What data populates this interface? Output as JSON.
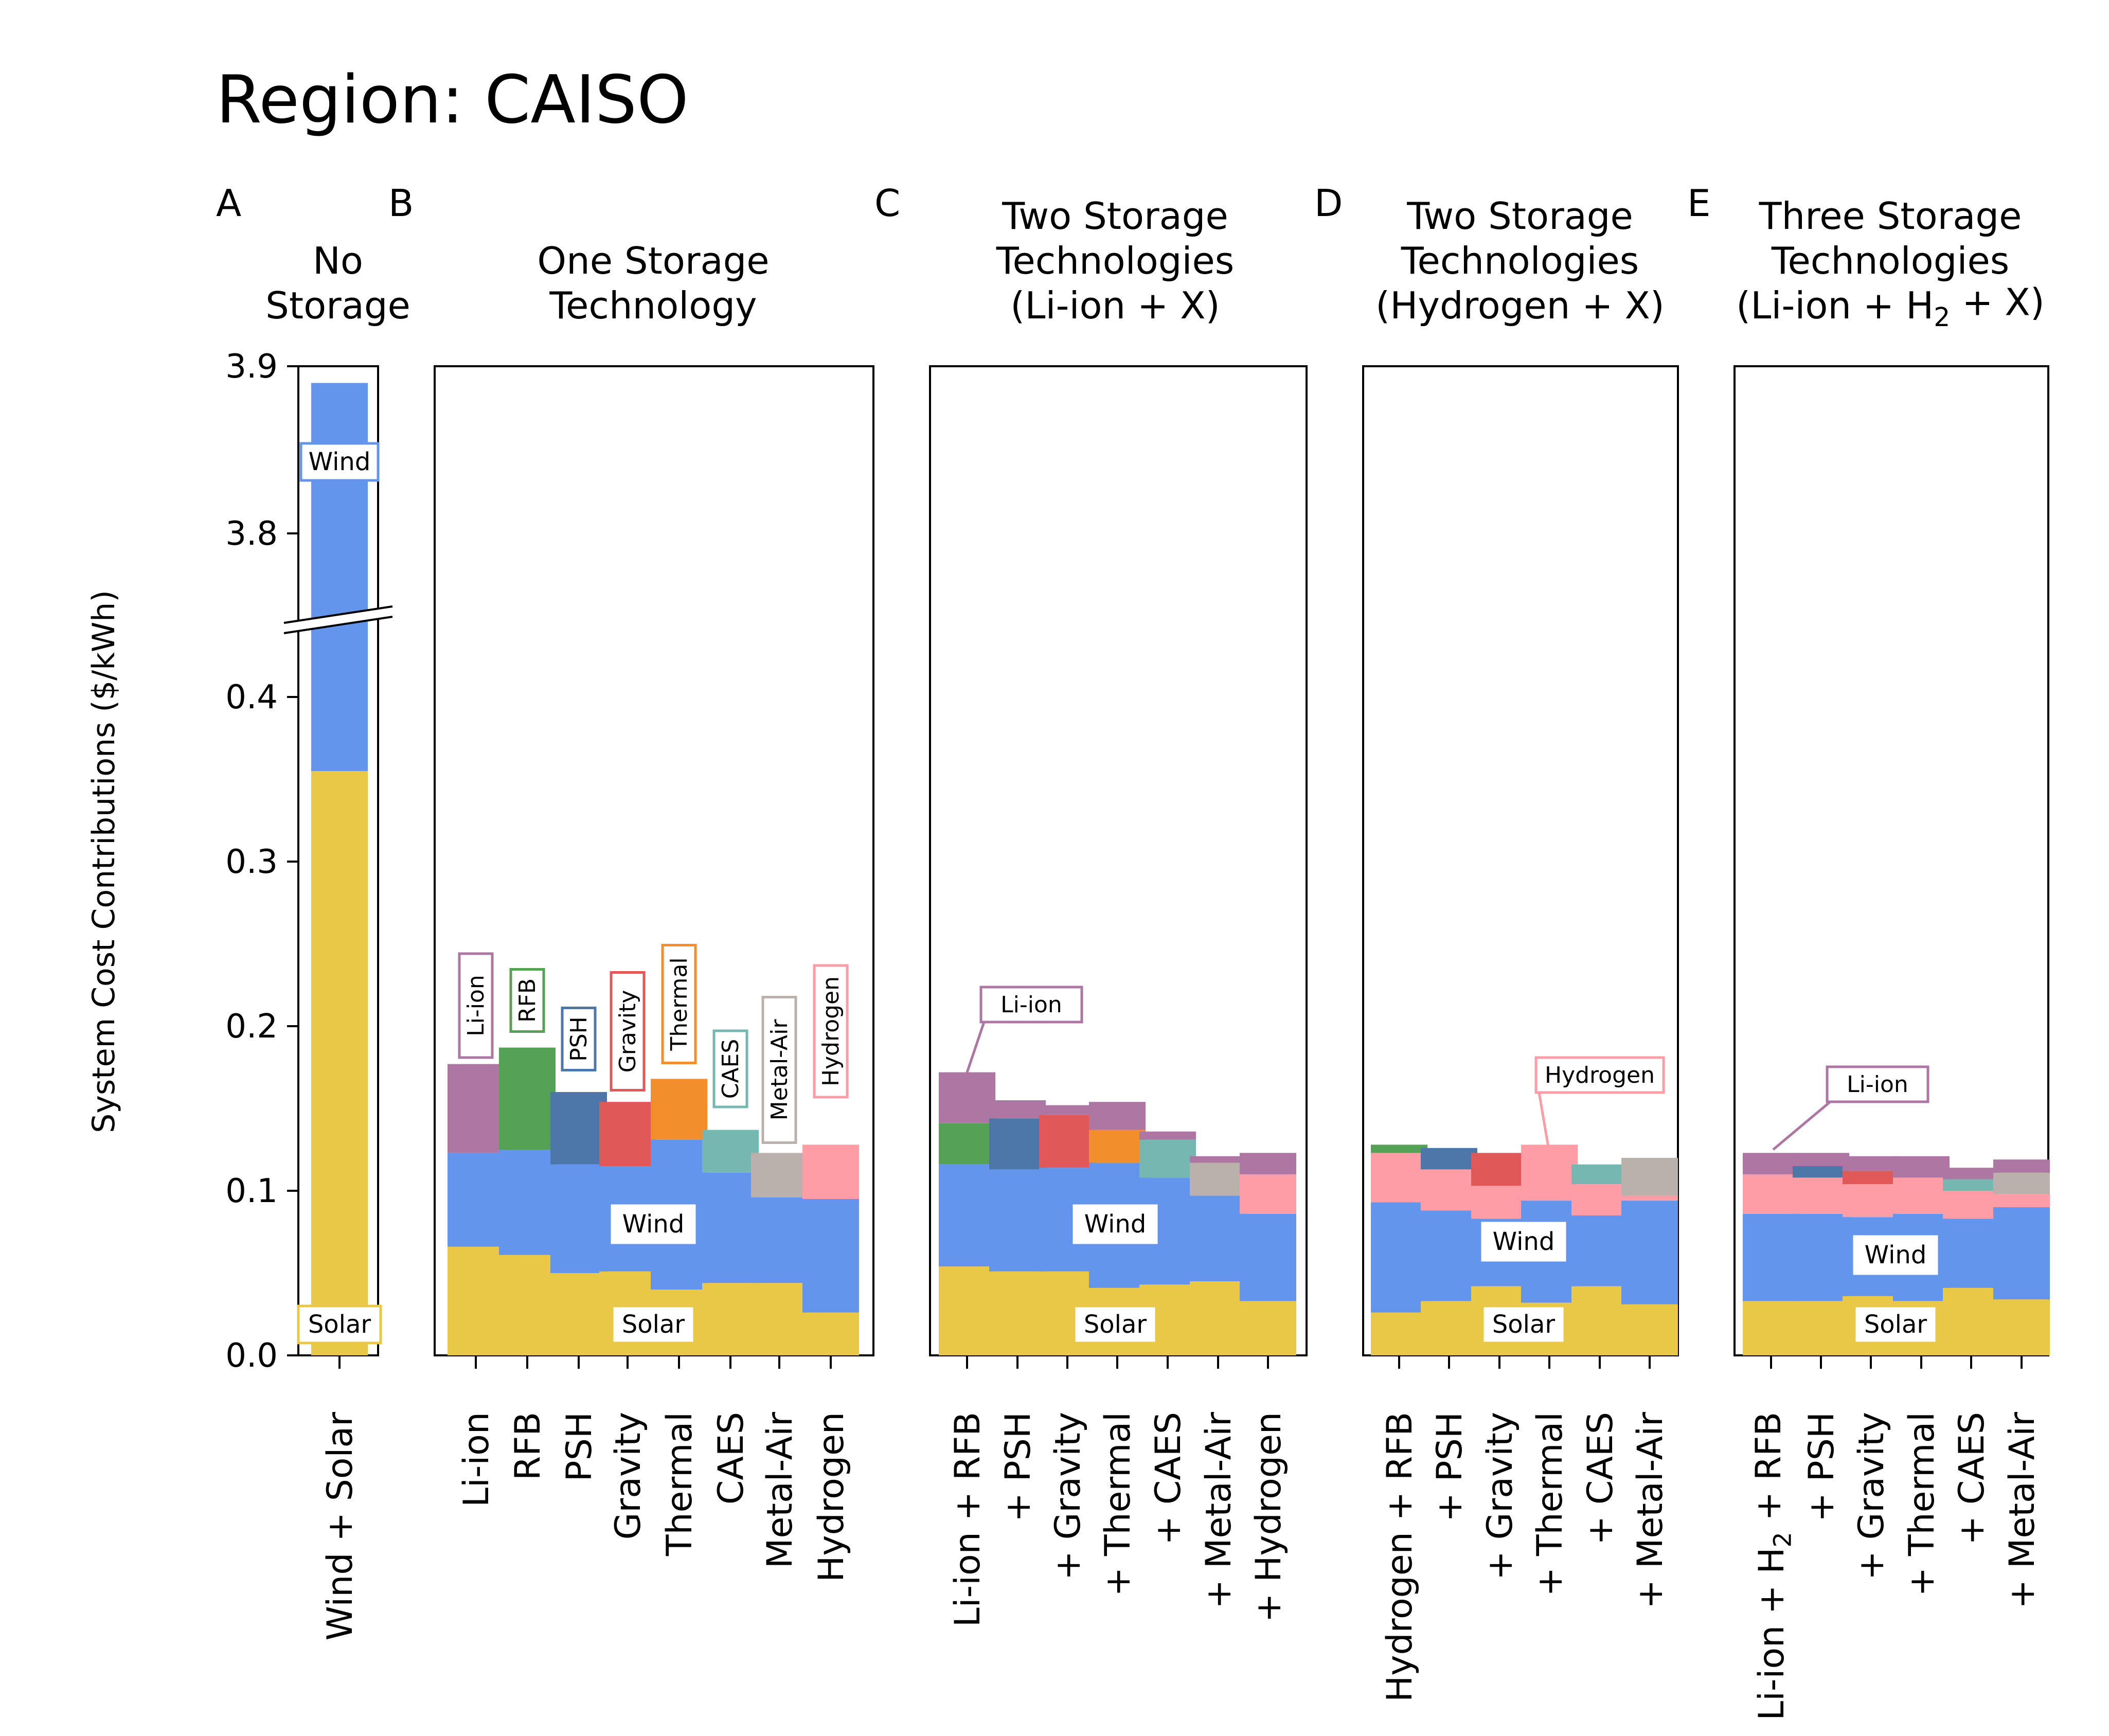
{
  "title": "Region: CAISO",
  "y_axis_label": "System Cost Contributions ($/kWh)",
  "y_ticks_lower": [
    "0.0",
    "0.1",
    "0.2",
    "0.3",
    "0.4"
  ],
  "y_ticks_upper": [
    "3.8",
    "3.9"
  ],
  "colors": {
    "Solar": "#EAC847",
    "Wind": "#6495ED",
    "Li-ion": "#AE76A3",
    "RFB": "#55A155",
    "PSH": "#4D77A8",
    "Gravity": "#E05858",
    "Thermal": "#F28E2B",
    "CAES": "#76B7B2",
    "Metal-Air": "#BAB0AC",
    "Hydrogen": "#FF9DA7"
  },
  "chart_data": [
    {
      "panel": "A",
      "title": "No Storage",
      "type": "bar",
      "stacked": true,
      "broken_y_axis": true,
      "categories": [
        "Wind + Solar"
      ],
      "series": [
        {
          "name": "Solar",
          "values": [
            0.355
          ]
        },
        {
          "name": "Wind",
          "values": [
            3.535
          ]
        }
      ],
      "annotations": [
        "Wind",
        "Solar"
      ]
    },
    {
      "panel": "B",
      "title": "One Storage Technology",
      "type": "bar",
      "stacked": true,
      "ylim": [
        0,
        0.6
      ],
      "categories": [
        "Li-ion",
        "RFB",
        "PSH",
        "Gravity",
        "Thermal",
        "CAES",
        "Metal-Air",
        "Hydrogen"
      ],
      "series": [
        {
          "name": "Solar",
          "values": [
            0.066,
            0.061,
            0.05,
            0.051,
            0.04,
            0.044,
            0.044,
            0.026
          ]
        },
        {
          "name": "Wind",
          "values": [
            0.057,
            0.064,
            0.066,
            0.064,
            0.091,
            0.067,
            0.052,
            0.069
          ]
        },
        {
          "name": "Li-ion",
          "values": [
            0.054,
            0,
            0,
            0,
            0,
            0,
            0,
            0
          ]
        },
        {
          "name": "RFB",
          "values": [
            0,
            0.062,
            0,
            0,
            0,
            0,
            0,
            0
          ]
        },
        {
          "name": "PSH",
          "values": [
            0,
            0,
            0.044,
            0,
            0,
            0,
            0,
            0
          ]
        },
        {
          "name": "Gravity",
          "values": [
            0,
            0,
            0,
            0.039,
            0,
            0,
            0,
            0
          ]
        },
        {
          "name": "Thermal",
          "values": [
            0,
            0,
            0,
            0,
            0.037,
            0,
            0,
            0
          ]
        },
        {
          "name": "CAES",
          "values": [
            0,
            0,
            0,
            0,
            0,
            0.026,
            0,
            0
          ]
        },
        {
          "name": "Metal-Air",
          "values": [
            0,
            0,
            0,
            0,
            0,
            0,
            0.027,
            0
          ]
        },
        {
          "name": "Hydrogen",
          "values": [
            0,
            0,
            0,
            0,
            0,
            0,
            0,
            0.033
          ]
        }
      ],
      "annotations": [
        "Li-ion",
        "RFB",
        "PSH",
        "Gravity",
        "Thermal",
        "CAES",
        "Metal-Air",
        "Hydrogen",
        "Wind",
        "Solar"
      ]
    },
    {
      "panel": "C",
      "title": "Two Storage Technologies (Li-ion + X)",
      "type": "bar",
      "stacked": true,
      "ylim": [
        0,
        0.6
      ],
      "categories": [
        "Li-ion + RFB",
        "+ PSH",
        "+ Gravity",
        "+ Thermal",
        "+ CAES",
        "+ Metal-Air",
        "+ Hydrogen"
      ],
      "series": [
        {
          "name": "Solar",
          "values": [
            0.054,
            0.051,
            0.051,
            0.041,
            0.043,
            0.045,
            0.033
          ]
        },
        {
          "name": "Wind",
          "values": [
            0.062,
            0.062,
            0.063,
            0.076,
            0.065,
            0.052,
            0.053
          ]
        },
        {
          "name": "RFB",
          "values": [
            0.025,
            0,
            0,
            0,
            0,
            0,
            0
          ]
        },
        {
          "name": "PSH",
          "values": [
            0,
            0.031,
            0,
            0,
            0,
            0,
            0
          ]
        },
        {
          "name": "Gravity",
          "values": [
            0,
            0,
            0.032,
            0,
            0,
            0,
            0
          ]
        },
        {
          "name": "Thermal",
          "values": [
            0,
            0,
            0,
            0.02,
            0,
            0,
            0
          ]
        },
        {
          "name": "CAES",
          "values": [
            0,
            0,
            0,
            0,
            0.023,
            0,
            0
          ]
        },
        {
          "name": "Metal-Air",
          "values": [
            0,
            0,
            0,
            0,
            0,
            0.02,
            0
          ]
        },
        {
          "name": "Hydrogen",
          "values": [
            0,
            0,
            0,
            0,
            0,
            0,
            0.024
          ]
        },
        {
          "name": "Li-ion",
          "values": [
            0.031,
            0.011,
            0.006,
            0.017,
            0.005,
            0.004,
            0.013
          ]
        }
      ],
      "annotations": [
        "Li-ion",
        "Wind",
        "Solar"
      ]
    },
    {
      "panel": "D",
      "title": "Two Storage Technologies (Hydrogen + X)",
      "type": "bar",
      "stacked": true,
      "ylim": [
        0,
        0.6
      ],
      "categories": [
        "Hydrogen + RFB",
        "+ PSH",
        "+ Gravity",
        "+ Thermal",
        "+ CAES",
        "+ Metal-Air"
      ],
      "series": [
        {
          "name": "Solar",
          "values": [
            0.026,
            0.033,
            0.042,
            0.032,
            0.042,
            0.031
          ]
        },
        {
          "name": "Wind",
          "values": [
            0.067,
            0.055,
            0.041,
            0.062,
            0.043,
            0.063
          ]
        },
        {
          "name": "Hydrogen",
          "values": [
            0.03,
            0.025,
            0.02,
            0.034,
            0.019,
            0.003
          ]
        },
        {
          "name": "RFB",
          "values": [
            0.005,
            0,
            0,
            0,
            0,
            0
          ]
        },
        {
          "name": "PSH",
          "values": [
            0,
            0.013,
            0,
            0,
            0,
            0
          ]
        },
        {
          "name": "Gravity",
          "values": [
            0,
            0,
            0.02,
            0,
            0,
            0
          ]
        },
        {
          "name": "Thermal",
          "values": [
            0,
            0,
            0,
            0,
            0,
            0
          ]
        },
        {
          "name": "CAES",
          "values": [
            0,
            0,
            0,
            0,
            0.012,
            0
          ]
        },
        {
          "name": "Metal-Air",
          "values": [
            0,
            0,
            0,
            0,
            0,
            0.023
          ]
        }
      ],
      "annotations": [
        "Hydrogen",
        "Wind",
        "Solar"
      ]
    },
    {
      "panel": "E",
      "title": "Three Storage Technologies (Li-ion + H2 + X)",
      "type": "bar",
      "stacked": true,
      "ylim": [
        0,
        0.6
      ],
      "categories": [
        "Li-ion + H2 + RFB",
        "+ PSH",
        "+ Gravity",
        "+ Thermal",
        "+ CAES",
        "+ Metal-Air"
      ],
      "series": [
        {
          "name": "Solar",
          "values": [
            0.033,
            0.033,
            0.036,
            0.033,
            0.041,
            0.034
          ]
        },
        {
          "name": "Wind",
          "values": [
            0.053,
            0.053,
            0.048,
            0.053,
            0.042,
            0.056
          ]
        },
        {
          "name": "Hydrogen",
          "values": [
            0.024,
            0.022,
            0.02,
            0.022,
            0.017,
            0.008
          ]
        },
        {
          "name": "RFB",
          "values": [
            0,
            0,
            0,
            0,
            0,
            0
          ]
        },
        {
          "name": "PSH",
          "values": [
            0,
            0.007,
            0,
            0,
            0,
            0
          ]
        },
        {
          "name": "Gravity",
          "values": [
            0,
            0,
            0.008,
            0,
            0,
            0
          ]
        },
        {
          "name": "Thermal",
          "values": [
            0,
            0,
            0,
            0,
            0,
            0
          ]
        },
        {
          "name": "CAES",
          "values": [
            0,
            0,
            0,
            0,
            0.007,
            0
          ]
        },
        {
          "name": "Metal-Air",
          "values": [
            0,
            0,
            0,
            0,
            0,
            0.013
          ]
        },
        {
          "name": "Li-ion",
          "values": [
            0.013,
            0.008,
            0.009,
            0.013,
            0.007,
            0.008
          ]
        }
      ],
      "annotations": [
        "Li-ion",
        "Wind",
        "Solar"
      ]
    }
  ],
  "panels_text": [
    {
      "letter": "A",
      "head": [
        "No",
        "Storage"
      ]
    },
    {
      "letter": "B",
      "head": [
        "One Storage",
        "Technology"
      ]
    },
    {
      "letter": "C",
      "head": [
        "Two Storage",
        "Technologies",
        "(Li-ion + X)"
      ]
    },
    {
      "letter": "D",
      "head": [
        "Two Storage",
        "Technologies",
        "(Hydrogen + X)"
      ]
    },
    {
      "letter": "E",
      "head": [
        "Three Storage",
        "Technologies",
        "(Li-ion + H2 + X)"
      ]
    }
  ]
}
